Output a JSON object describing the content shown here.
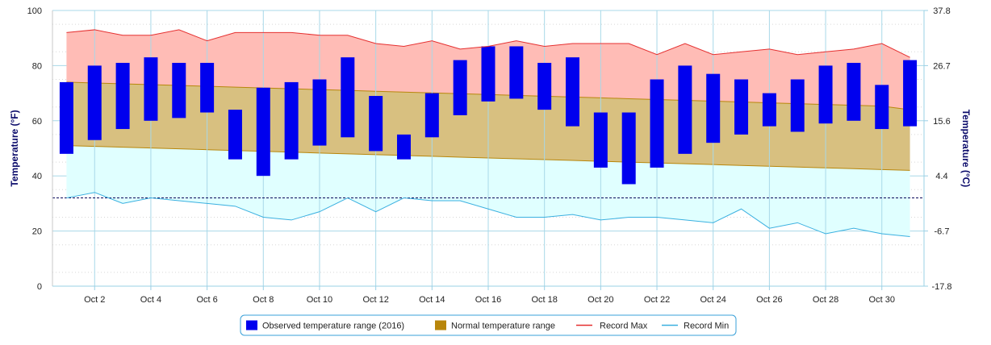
{
  "chart_data": {
    "type": "floating-bar+area+line",
    "title": "",
    "days": [
      1,
      2,
      3,
      4,
      5,
      6,
      7,
      8,
      9,
      10,
      11,
      12,
      13,
      14,
      15,
      16,
      17,
      18,
      19,
      20,
      21,
      22,
      23,
      24,
      25,
      26,
      27,
      28,
      29,
      30,
      31
    ],
    "x_ticks": [
      {
        "day": 2,
        "label": "Oct 2"
      },
      {
        "day": 4,
        "label": "Oct 4"
      },
      {
        "day": 6,
        "label": "Oct 6"
      },
      {
        "day": 8,
        "label": "Oct 8"
      },
      {
        "day": 10,
        "label": "Oct 10"
      },
      {
        "day": 12,
        "label": "Oct 12"
      },
      {
        "day": 14,
        "label": "Oct 14"
      },
      {
        "day": 16,
        "label": "Oct 16"
      },
      {
        "day": 18,
        "label": "Oct 18"
      },
      {
        "day": 20,
        "label": "Oct 20"
      },
      {
        "day": 22,
        "label": "Oct 22"
      },
      {
        "day": 24,
        "label": "Oct 24"
      },
      {
        "day": 26,
        "label": "Oct 26"
      },
      {
        "day": 28,
        "label": "Oct 28"
      },
      {
        "day": 30,
        "label": "Oct 30"
      }
    ],
    "y_left": {
      "label": "Temperature (°F)",
      "min": 0,
      "max": 100,
      "ticks": [
        "0",
        "20",
        "40",
        "60",
        "80",
        "100"
      ]
    },
    "y_right": {
      "label": "Temperature (°C)",
      "ticks": [
        {
          "f": 0,
          "label": "-17.8"
        },
        {
          "f": 20,
          "label": "-6.7"
        },
        {
          "f": 40,
          "label": "4.4"
        },
        {
          "f": 60,
          "label": "15.6"
        },
        {
          "f": 80,
          "label": "26.7"
        },
        {
          "f": 100,
          "label": "37.8"
        }
      ]
    },
    "freezing_line_f": 32,
    "series": [
      {
        "name": "Observed temperature range (2016)",
        "color": "#0000ee",
        "low": [
          48,
          53,
          57,
          60,
          61,
          63,
          46,
          40,
          46,
          51,
          54,
          49,
          46,
          54,
          62,
          67,
          68,
          64,
          58,
          43,
          37,
          43,
          48,
          52,
          55,
          58,
          56,
          59,
          60,
          57,
          58
        ],
        "high": [
          74,
          80,
          81,
          83,
          81,
          81,
          64,
          72,
          74,
          75,
          83,
          69,
          55,
          70,
          82,
          87,
          87,
          81,
          83,
          63,
          63,
          75,
          80,
          77,
          75,
          70,
          75,
          80,
          81,
          73,
          82
        ]
      },
      {
        "name": "Normal temperature range",
        "color": "#b8860b",
        "fill": "#d8c080",
        "low": [
          51,
          50.7,
          50.4,
          50.1,
          49.8,
          49.5,
          49.2,
          48.9,
          48.6,
          48.3,
          48,
          47.7,
          47.4,
          47.1,
          46.8,
          46.5,
          46.2,
          45.9,
          45.6,
          45.3,
          45,
          44.7,
          44.4,
          44.1,
          43.8,
          43.5,
          43.2,
          42.9,
          42.6,
          42.3,
          42
        ],
        "high": [
          74,
          73.7,
          73.4,
          73.1,
          72.8,
          72.5,
          72.2,
          71.9,
          71.6,
          71.3,
          71,
          70.7,
          70.4,
          70.1,
          69.8,
          69.5,
          69.2,
          68.9,
          68.6,
          68.3,
          68,
          67.7,
          67.4,
          67.1,
          66.8,
          66.5,
          66.2,
          65.9,
          65.6,
          65.3,
          64
        ]
      },
      {
        "name": "Record Max",
        "color": "#e53030",
        "fill": "#ffbcb6",
        "values": [
          92,
          93,
          91,
          91,
          93,
          89,
          92,
          92,
          92,
          91,
          91,
          88,
          87,
          89,
          86,
          87,
          89,
          87,
          88,
          88,
          88,
          84,
          88,
          84,
          85,
          86,
          84,
          85,
          86,
          88,
          83
        ]
      },
      {
        "name": "Record Min",
        "color": "#3ab0e0",
        "fill": "#e0ffff",
        "values": [
          32,
          34,
          30,
          32,
          31,
          30,
          29,
          25,
          24,
          27,
          32,
          27,
          32,
          31,
          31,
          28,
          25,
          25,
          26,
          24,
          25,
          25,
          24,
          23,
          28,
          21,
          23,
          19,
          21,
          19,
          18
        ]
      }
    ],
    "legend_position": "bottom-center",
    "grid": true
  }
}
